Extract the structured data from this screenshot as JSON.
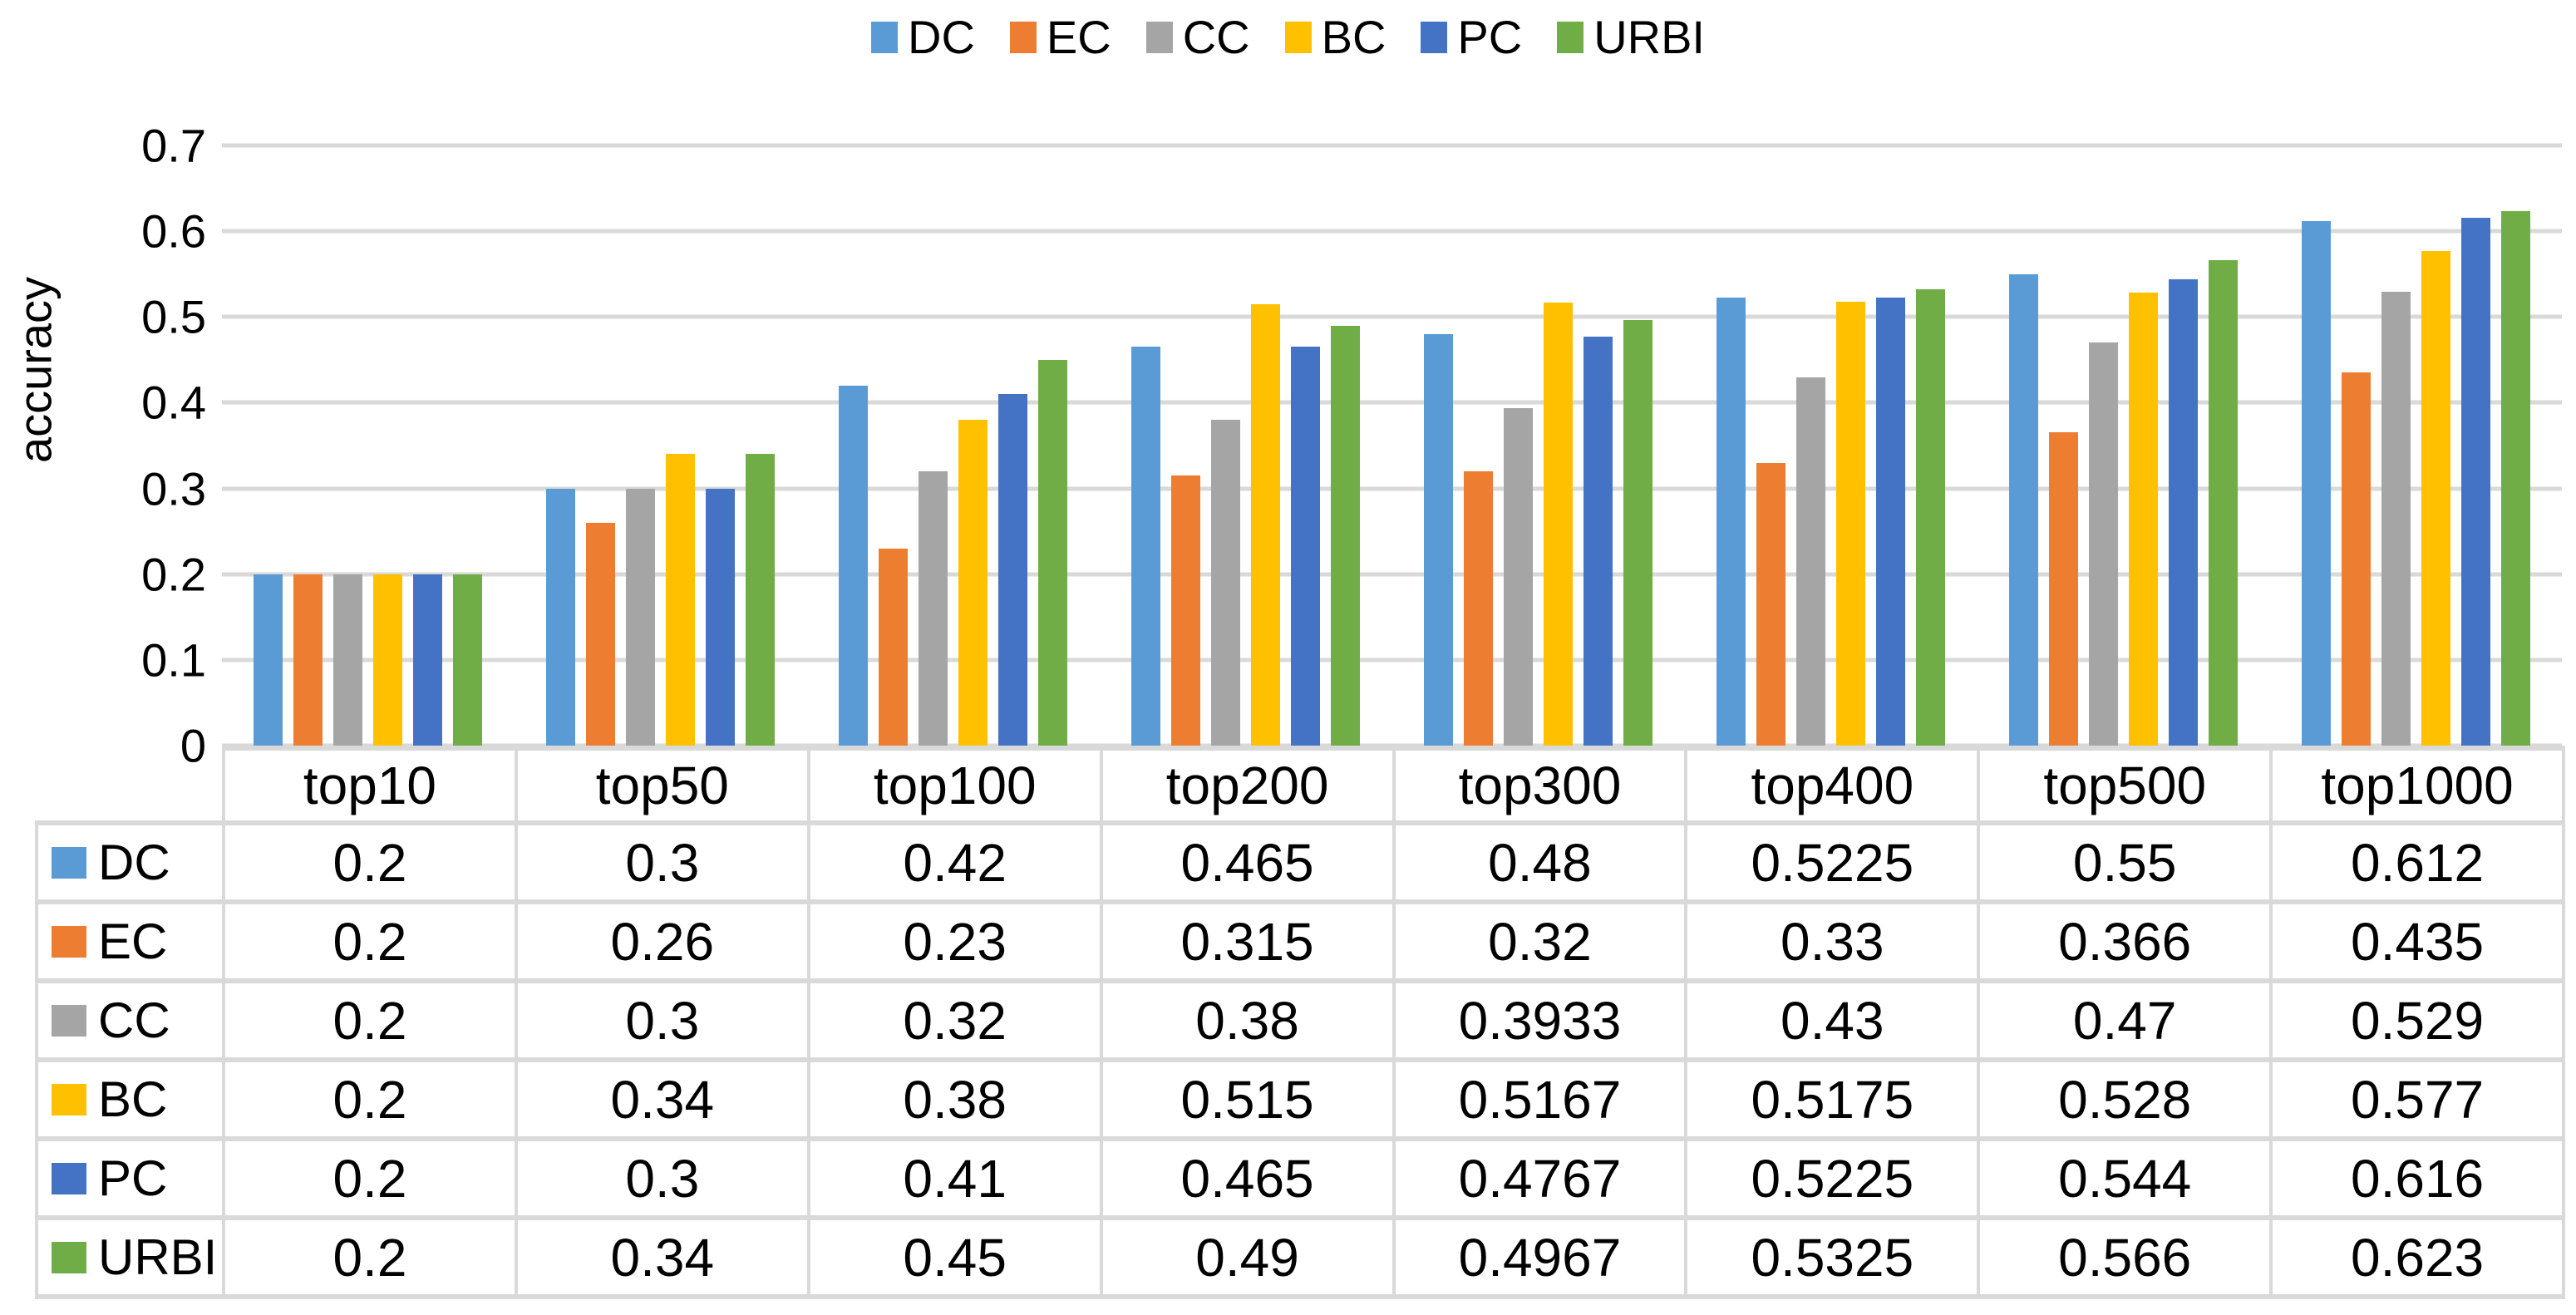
{
  "chart_data": {
    "type": "bar",
    "title": "",
    "ylabel": "accuracy",
    "xlabel": "",
    "ylim": [
      0,
      0.7
    ],
    "ytick_labels": [
      "0.7",
      "0.6",
      "0.5",
      "0.4",
      "0.3",
      "0.2",
      "0.1",
      "0"
    ],
    "grid": true,
    "legend_position": "top",
    "data_table_shown": true,
    "categories": [
      "top10",
      "top50",
      "top100",
      "top200",
      "top300",
      "top400",
      "top500",
      "top1000"
    ],
    "series": [
      {
        "name": "DC",
        "color": "#5B9BD5",
        "values": [
          0.2,
          0.3,
          0.42,
          0.465,
          0.48,
          0.5225,
          0.55,
          0.612
        ]
      },
      {
        "name": "EC",
        "color": "#ED7D31",
        "values": [
          0.2,
          0.26,
          0.23,
          0.315,
          0.32,
          0.33,
          0.366,
          0.435
        ]
      },
      {
        "name": "CC",
        "color": "#A5A5A5",
        "values": [
          0.2,
          0.3,
          0.32,
          0.38,
          0.3933,
          0.43,
          0.47,
          0.529
        ]
      },
      {
        "name": "BC",
        "color": "#FFC000",
        "values": [
          0.2,
          0.34,
          0.38,
          0.515,
          0.5167,
          0.5175,
          0.528,
          0.577
        ]
      },
      {
        "name": "PC",
        "color": "#4472C4",
        "values": [
          0.2,
          0.3,
          0.41,
          0.465,
          0.4767,
          0.5225,
          0.544,
          0.616
        ]
      },
      {
        "name": "URBI",
        "color": "#70AD47",
        "values": [
          0.2,
          0.34,
          0.45,
          0.49,
          0.4967,
          0.5325,
          0.566,
          0.623
        ]
      }
    ]
  },
  "colors": {
    "gridline": "#D9D9D9",
    "table_border": "#D9D9D9",
    "text": "#000000",
    "background": "#FFFFFF"
  }
}
